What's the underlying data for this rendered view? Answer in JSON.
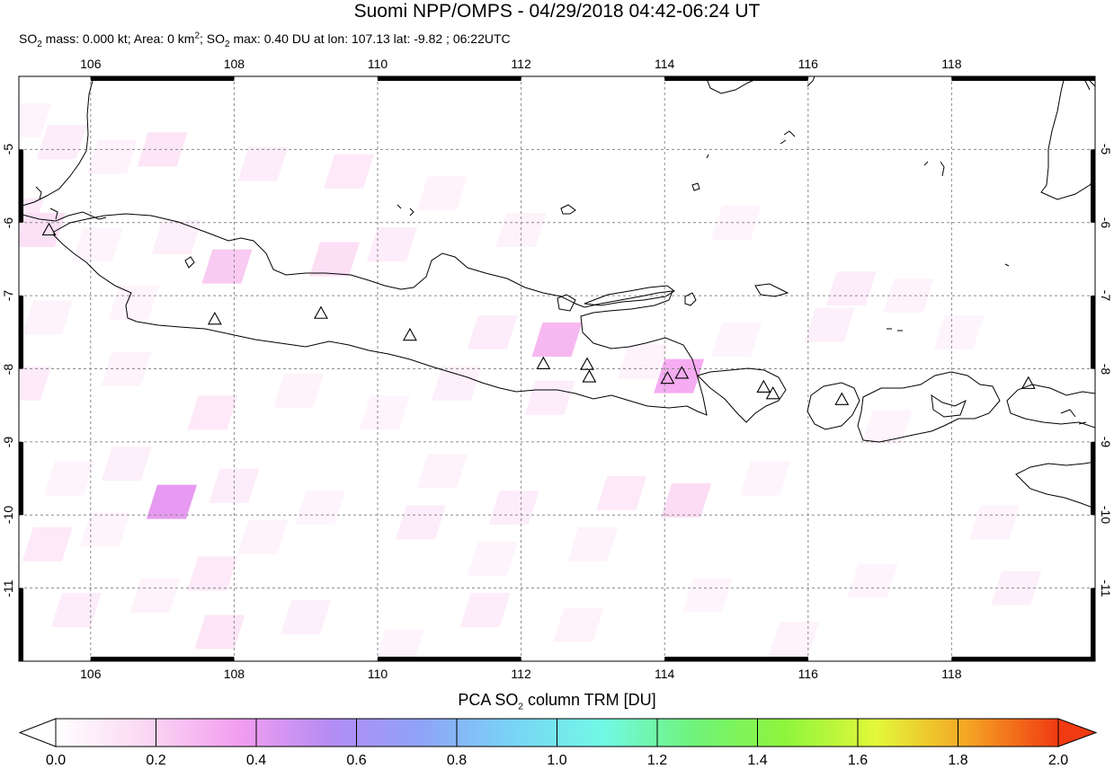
{
  "title": "Suomi NPP/OMPS - 04/29/2018 04:42-06:24 UT",
  "subtitle": {
    "so2_prefix": "SO",
    "so2_sub": "2",
    "mass_text": " mass: 0.000 kt; Area: 0 km",
    "area_sup": "2",
    "sep": "; SO",
    "max_sub": "2",
    "max_text": " max: 0.40 DU at lon: 107.13 lat: -9.82 ; 06:22UTC"
  },
  "map": {
    "lon_range": [
      105.0,
      120.0
    ],
    "lat_range": [
      -12.0,
      -4.0
    ],
    "lon_ticks": [
      "106",
      "108",
      "110",
      "112",
      "114",
      "116",
      "118"
    ],
    "lon_tick_values": [
      106,
      108,
      110,
      112,
      114,
      116,
      118
    ],
    "lat_ticks": [
      "-5",
      "-6",
      "-7",
      "-8",
      "-9",
      "-10",
      "-11"
    ],
    "lat_tick_values": [
      -5,
      -6,
      -7,
      -8,
      -9,
      -10,
      -11
    ],
    "grid": true,
    "coastline_color": "#000000",
    "volcano_marker": "triangle-outline",
    "volcanoes": [
      [
        105.42,
        -6.1
      ],
      [
        107.73,
        -7.32
      ],
      [
        109.21,
        -7.24
      ],
      [
        110.45,
        -7.54
      ],
      [
        112.31,
        -7.93
      ],
      [
        112.92,
        -7.94
      ],
      [
        112.95,
        -8.11
      ],
      [
        114.04,
        -8.13
      ],
      [
        114.24,
        -8.06
      ],
      [
        115.38,
        -8.25
      ],
      [
        115.51,
        -8.34
      ],
      [
        116.47,
        -8.42
      ],
      [
        119.07,
        -8.2
      ]
    ],
    "so2_pixels": [
      [
        105.1,
        -4.6,
        0.05
      ],
      [
        105.6,
        -4.9,
        0.08
      ],
      [
        106.3,
        -5.1,
        0.06
      ],
      [
        107.0,
        -5.0,
        0.12
      ],
      [
        108.4,
        -5.2,
        0.08
      ],
      [
        109.6,
        -5.3,
        0.1
      ],
      [
        110.9,
        -5.6,
        0.06
      ],
      [
        105.0,
        -5.9,
        0.1
      ],
      [
        105.3,
        -6.1,
        0.14
      ],
      [
        106.1,
        -6.3,
        0.05
      ],
      [
        107.2,
        -6.2,
        0.07
      ],
      [
        107.9,
        -6.6,
        0.22
      ],
      [
        109.4,
        -6.5,
        0.15
      ],
      [
        110.2,
        -6.3,
        0.08
      ],
      [
        112.0,
        -6.1,
        0.06
      ],
      [
        115.0,
        -6.0,
        0.05
      ],
      [
        116.6,
        -6.9,
        0.08
      ],
      [
        117.4,
        -7.0,
        0.06
      ],
      [
        105.4,
        -7.3,
        0.06
      ],
      [
        106.6,
        -7.1,
        0.05
      ],
      [
        111.6,
        -7.5,
        0.08
      ],
      [
        112.5,
        -7.6,
        0.28
      ],
      [
        113.7,
        -7.9,
        0.06
      ],
      [
        115.0,
        -7.6,
        0.05
      ],
      [
        116.3,
        -7.4,
        0.07
      ],
      [
        118.1,
        -7.5,
        0.05
      ],
      [
        105.1,
        -8.2,
        0.09
      ],
      [
        106.5,
        -8.0,
        0.06
      ],
      [
        107.7,
        -8.6,
        0.1
      ],
      [
        108.9,
        -8.3,
        0.06
      ],
      [
        110.1,
        -8.6,
        0.05
      ],
      [
        111.1,
        -8.2,
        0.07
      ],
      [
        112.4,
        -8.4,
        0.08
      ],
      [
        114.2,
        -8.1,
        0.32
      ],
      [
        117.1,
        -8.8,
        0.05
      ],
      [
        105.7,
        -9.5,
        0.05
      ],
      [
        106.5,
        -9.3,
        0.07
      ],
      [
        107.13,
        -9.82,
        0.4
      ],
      [
        108.0,
        -9.6,
        0.08
      ],
      [
        109.2,
        -9.9,
        0.05
      ],
      [
        110.9,
        -9.4,
        0.06
      ],
      [
        111.9,
        -9.9,
        0.08
      ],
      [
        113.4,
        -9.7,
        0.1
      ],
      [
        114.3,
        -9.8,
        0.16
      ],
      [
        115.4,
        -9.5,
        0.05
      ],
      [
        118.6,
        -10.1,
        0.06
      ],
      [
        105.4,
        -10.4,
        0.1
      ],
      [
        106.2,
        -10.2,
        0.05
      ],
      [
        107.7,
        -10.8,
        0.1
      ],
      [
        108.4,
        -10.3,
        0.06
      ],
      [
        110.6,
        -10.1,
        0.08
      ],
      [
        111.6,
        -10.6,
        0.05
      ],
      [
        113.0,
        -10.4,
        0.06
      ],
      [
        116.9,
        -10.9,
        0.05
      ],
      [
        105.8,
        -11.3,
        0.08
      ],
      [
        106.9,
        -11.1,
        0.06
      ],
      [
        107.8,
        -11.6,
        0.12
      ],
      [
        109.0,
        -11.4,
        0.07
      ],
      [
        110.3,
        -11.8,
        0.05
      ],
      [
        111.5,
        -11.3,
        0.08
      ],
      [
        112.8,
        -11.5,
        0.06
      ],
      [
        114.6,
        -11.1,
        0.05
      ],
      [
        115.8,
        -11.7,
        0.06
      ],
      [
        118.9,
        -11.0,
        0.07
      ]
    ]
  },
  "colorbar": {
    "title_prefix": "PCA SO",
    "title_sub": "2",
    "title_suffix": " column TRM [DU]",
    "range": [
      0.0,
      2.0
    ],
    "labels": [
      "0.0",
      "0.2",
      "0.4",
      "0.6",
      "0.8",
      "1.0",
      "1.2",
      "1.4",
      "1.6",
      "1.8",
      "2.0"
    ],
    "label_values": [
      0.0,
      0.2,
      0.4,
      0.6,
      0.8,
      1.0,
      1.2,
      1.4,
      1.6,
      1.8,
      2.0
    ],
    "stops": [
      "#ffffff",
      "#fbd7f3",
      "#f39ef0",
      "#b58cf3",
      "#8fa3f7",
      "#79d3f7",
      "#72f9e6",
      "#6ff37a",
      "#8ef53c",
      "#e3f83a",
      "#f5a524",
      "#f03a12"
    ]
  }
}
